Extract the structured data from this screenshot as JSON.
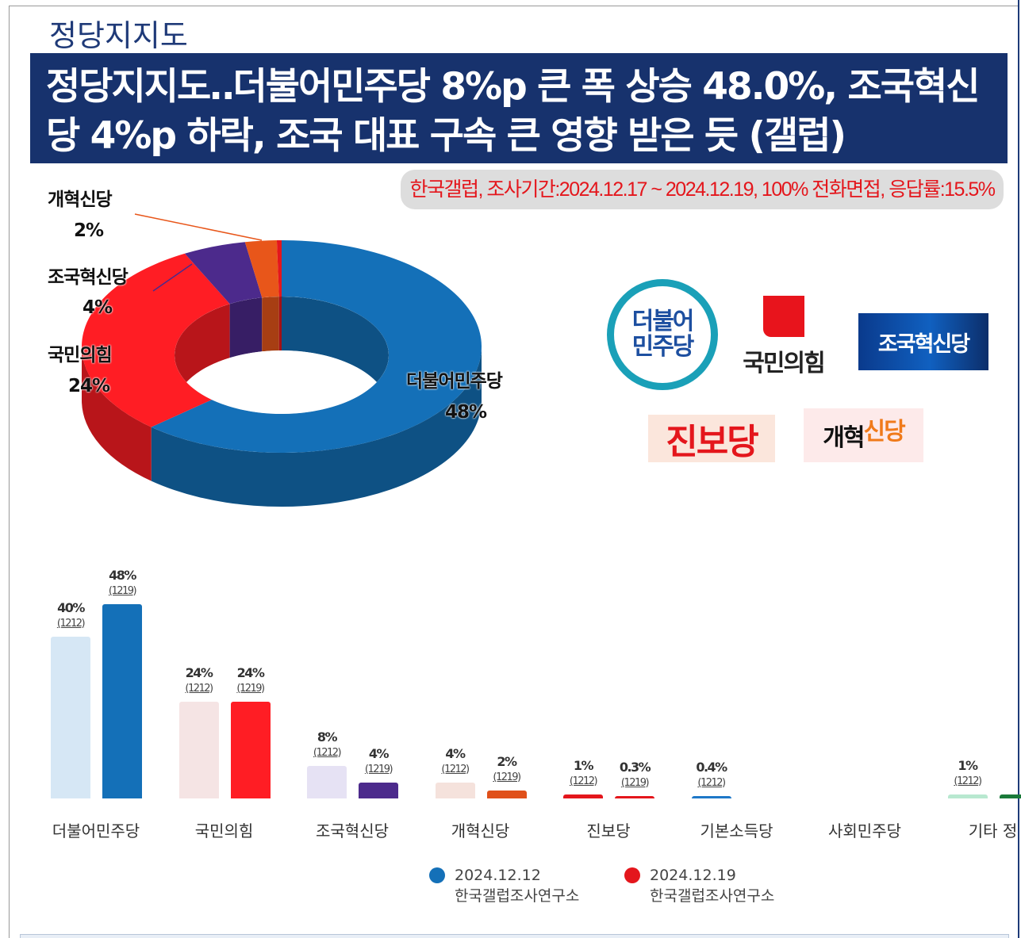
{
  "title_small": "정당지지도",
  "headline": "정당지지도‥더불어민주당 8%p 큰 폭 상승 48.0%, 조국혁신당 4%p 하락, 조국 대표 구속 큰 영향 받은 듯 (갤럽)",
  "survey_info": "한국갤럽, 조사기간:2024.12.17 ~ 2024.12.19, 100% 전화면접, 응답률:15.5%",
  "logos": {
    "democratic": "더불어\n민주당",
    "ppp": "국민의힘",
    "rebuilding": "조국혁신당",
    "progressive": "진보당",
    "reform_a": "개혁",
    "reform_b": "신당"
  },
  "chart_data": [
    {
      "type": "pie",
      "style": "3d-donut",
      "slices": [
        {
          "label": "더불어민주당",
          "value_label": "48%",
          "value": 48,
          "color": "#1470b8"
        },
        {
          "label": "국민의힘",
          "value_label": "24%",
          "value": 24,
          "color": "#ff1d24"
        },
        {
          "label": "조국혁신당",
          "value_label": "4%",
          "value": 4,
          "color": "#4c2a8c"
        },
        {
          "label": "개혁신당",
          "value_label": "2%",
          "value": 2,
          "color": "#e8561a"
        },
        {
          "label": "",
          "value_label": "",
          "value": 0.3,
          "color": "#e4161c"
        }
      ]
    },
    {
      "type": "bar",
      "categories": [
        "더불어민주당",
        "국민의힘",
        "조국혁신당",
        "개혁신당",
        "진보당",
        "기본소득당",
        "사회민주당",
        "기타 정"
      ],
      "series": [
        {
          "name": "2024.12.12",
          "source": "한국갤럽조사연구소",
          "color": "#1470b8",
          "values": [
            40,
            24,
            8,
            4,
            1,
            0.4,
            null,
            1
          ],
          "labels": [
            "40%",
            "24%",
            "8%",
            "4%",
            "1%",
            "0.4%",
            "",
            "1%"
          ],
          "n": [
            "(1212)",
            "(1212)",
            "(1212)",
            "(1212)",
            "(1212)",
            "(1212)",
            "",
            "(1212)"
          ],
          "bar_colors": [
            "#d6e7f5",
            "#f5e4e4",
            "#e6e2f4",
            "#f5e2dc",
            "#e4161c",
            "#1e78c8",
            "",
            "#b8e8d0"
          ]
        },
        {
          "name": "2024.12.19",
          "source": "한국갤럽조사연구소",
          "color": "#e4161c",
          "values": [
            48,
            24,
            4,
            2,
            0.3,
            null,
            null,
            null
          ],
          "labels": [
            "48%",
            "24%",
            "4%",
            "2%",
            "0.3%",
            "",
            "",
            ""
          ],
          "n": [
            "(1219)",
            "(1219)",
            "(1219)",
            "(1219)",
            "(1219)",
            "",
            "",
            ""
          ],
          "bar_colors": [
            "#1470b8",
            "#ff1d24",
            "#4c2a8c",
            "#e0501a",
            "#e4161c",
            "",
            "",
            "#1a7a3a"
          ]
        }
      ]
    }
  ]
}
